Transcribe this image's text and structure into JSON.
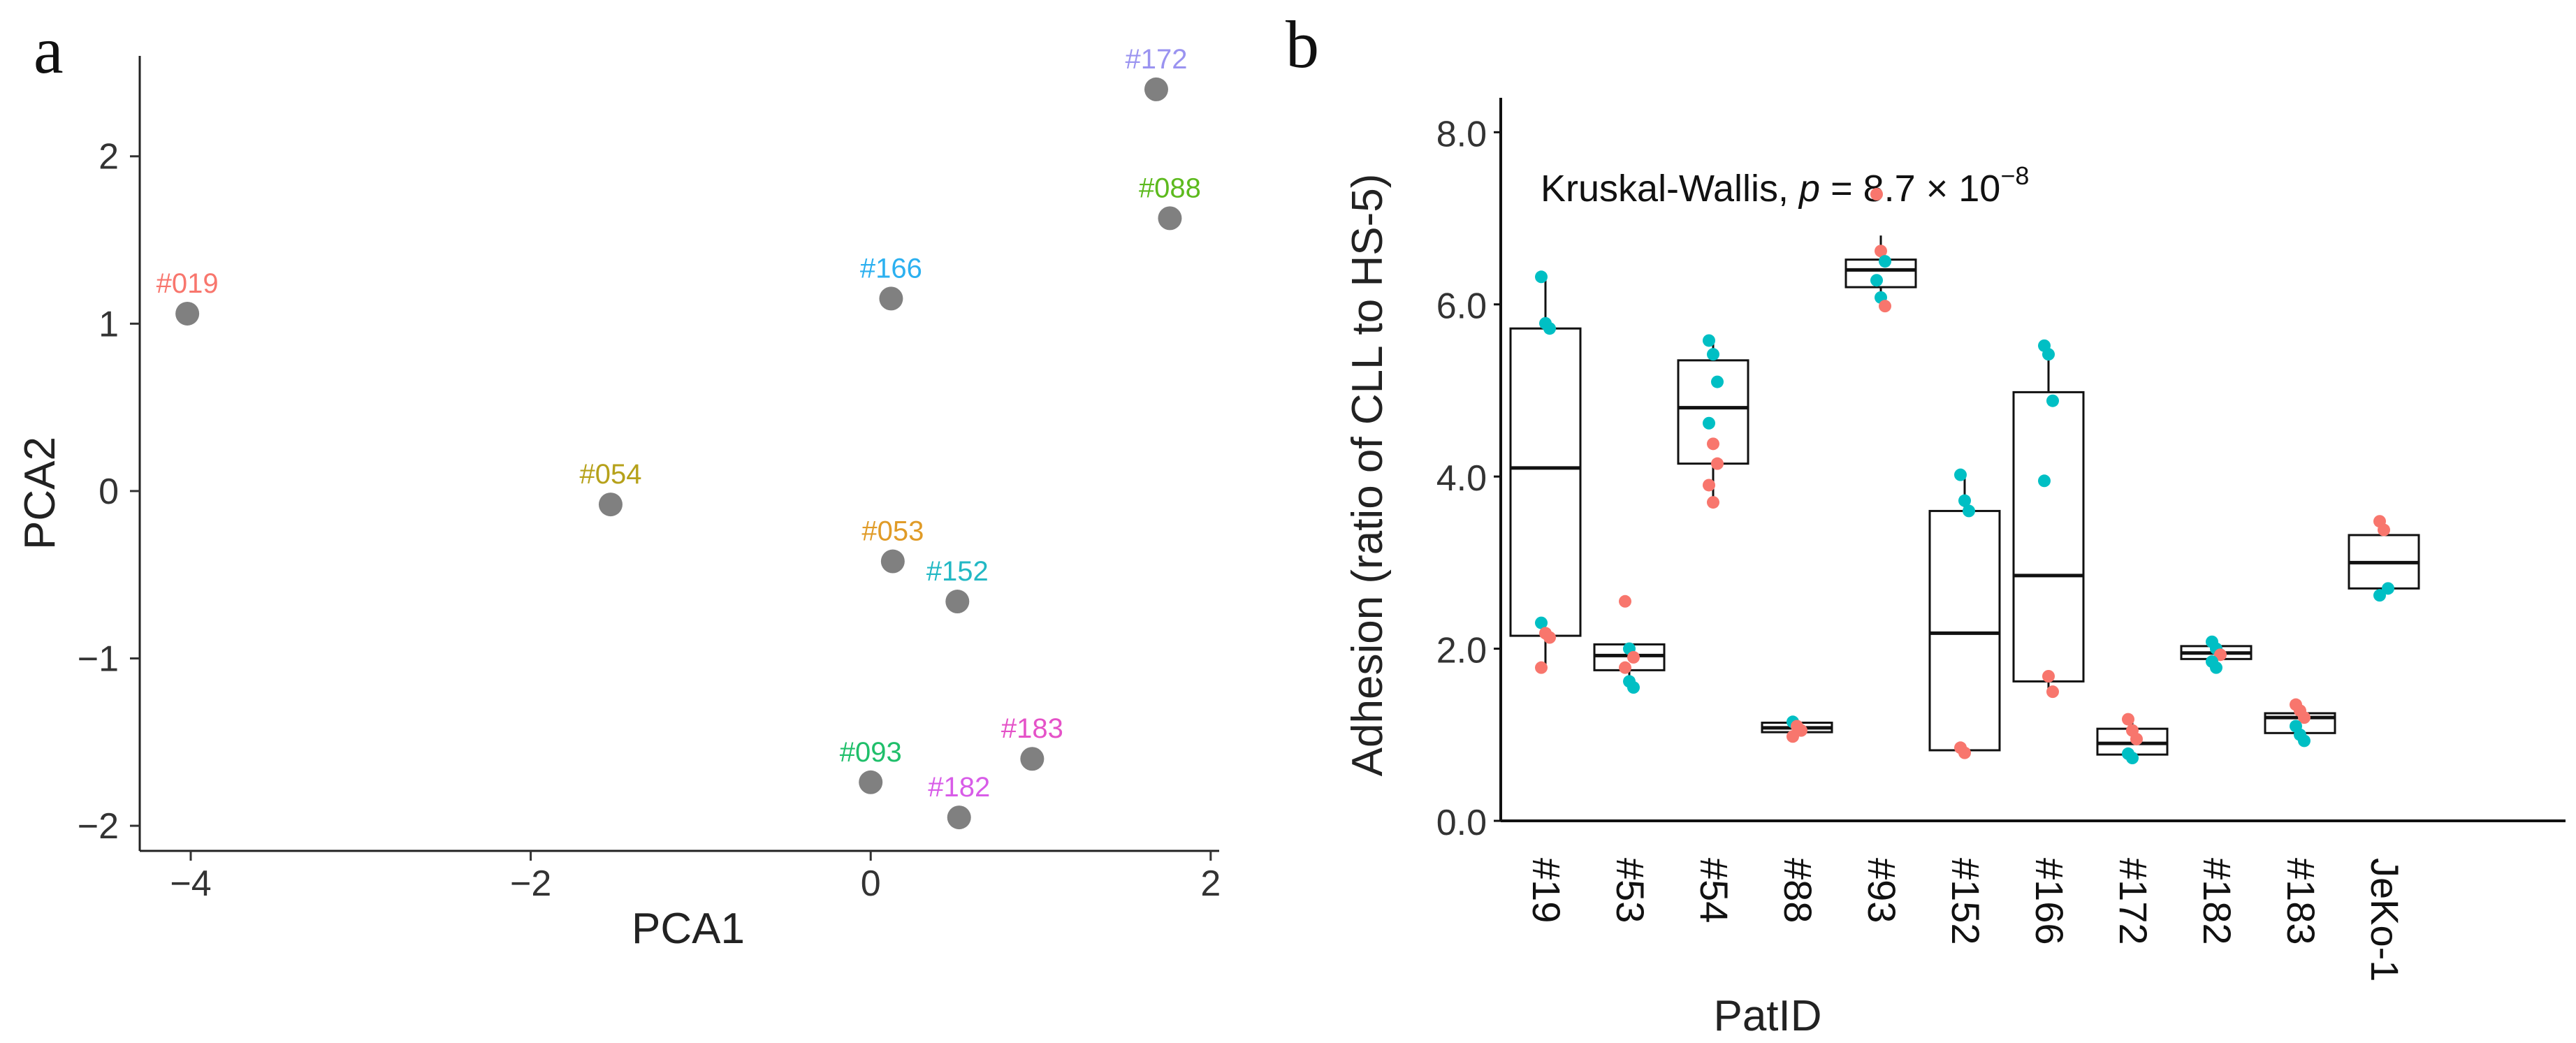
{
  "chart_data": [
    {
      "panel": "a",
      "type": "scatter",
      "xlabel": "PCA1",
      "ylabel": "PCA2",
      "xlim": [
        -4.3,
        2.05
      ],
      "ylim": [
        -2.15,
        2.6
      ],
      "xticks": [
        -4,
        -2,
        0,
        2
      ],
      "yticks": [
        -2,
        -1,
        0,
        1,
        2
      ],
      "xtick_labels": [
        "−4",
        "−2",
        "0",
        "2"
      ],
      "ytick_labels": [
        "−2",
        "−1",
        "0",
        "1",
        "2"
      ],
      "point_color": "#808080",
      "points": [
        {
          "label": "#019",
          "x": -4.02,
          "y": 1.06,
          "color": "#F8766D"
        },
        {
          "label": "#054",
          "x": -1.53,
          "y": -0.08,
          "color": "#B6A11A"
        },
        {
          "label": "#053",
          "x": 0.13,
          "y": -0.42,
          "color": "#E09B27"
        },
        {
          "label": "#152",
          "x": 0.51,
          "y": -0.66,
          "color": "#22B8C4"
        },
        {
          "label": "#166",
          "x": 0.12,
          "y": 1.15,
          "color": "#2BB0F0"
        },
        {
          "label": "#172",
          "x": 1.68,
          "y": 2.4,
          "color": "#9A93F0"
        },
        {
          "label": "#088",
          "x": 1.76,
          "y": 1.63,
          "color": "#5DBA1E"
        },
        {
          "label": "#093",
          "x": 0.0,
          "y": -1.74,
          "color": "#1FBF6A"
        },
        {
          "label": "#183",
          "x": 0.95,
          "y": -1.6,
          "color": "#E552C8"
        },
        {
          "label": "#182",
          "x": 0.52,
          "y": -1.95,
          "color": "#D85CE8"
        }
      ]
    },
    {
      "panel": "b",
      "type": "box",
      "xlabel": "PatID",
      "ylabel": "Adhesion (ratio of CLL to HS-5)",
      "annotation": {
        "prefix": "Kruskal-Wallis, ",
        "p_symbol": "p",
        "value": " = 8.7 × 10",
        "exponent": "−8"
      },
      "ylim": [
        0,
        8.4
      ],
      "yticks": [
        0,
        2,
        4,
        6,
        8
      ],
      "ytick_labels": [
        "0.0",
        "2.0",
        "4.0",
        "6.0",
        "8.0"
      ],
      "series_colors": {
        "red": "#F8766D",
        "cyan": "#00BFC4"
      },
      "categories": [
        "#19",
        "#53",
        "#54",
        "#88",
        "#93",
        "#152",
        "#166",
        "#172",
        "#182",
        "#183",
        "JeKo-1"
      ],
      "boxes": [
        {
          "q1": 2.15,
          "median": 4.1,
          "q3": 5.72,
          "whisker_low": 1.78,
          "whisker_high": 6.3,
          "points": [
            {
              "y": 6.32,
              "c": "cyan"
            },
            {
              "y": 5.78,
              "c": "cyan"
            },
            {
              "y": 5.72,
              "c": "cyan"
            },
            {
              "y": 2.3,
              "c": "cyan"
            },
            {
              "y": 2.18,
              "c": "red"
            },
            {
              "y": 2.13,
              "c": "red"
            },
            {
              "y": 1.78,
              "c": "red"
            }
          ]
        },
        {
          "q1": 1.75,
          "median": 1.92,
          "q3": 2.05,
          "whisker_low": 1.55,
          "whisker_high": 2.05,
          "points": [
            {
              "y": 2.55,
              "c": "red"
            },
            {
              "y": 2.0,
              "c": "cyan"
            },
            {
              "y": 1.9,
              "c": "red"
            },
            {
              "y": 1.78,
              "c": "red"
            },
            {
              "y": 1.62,
              "c": "cyan"
            },
            {
              "y": 1.55,
              "c": "cyan"
            }
          ]
        },
        {
          "q1": 4.15,
          "median": 4.8,
          "q3": 5.35,
          "whisker_low": 3.68,
          "whisker_high": 5.6,
          "points": [
            {
              "y": 5.58,
              "c": "cyan"
            },
            {
              "y": 5.42,
              "c": "cyan"
            },
            {
              "y": 5.1,
              "c": "cyan"
            },
            {
              "y": 4.62,
              "c": "cyan"
            },
            {
              "y": 4.38,
              "c": "red"
            },
            {
              "y": 4.15,
              "c": "red"
            },
            {
              "y": 3.9,
              "c": "red"
            },
            {
              "y": 3.7,
              "c": "red"
            }
          ]
        },
        {
          "q1": 1.03,
          "median": 1.08,
          "q3": 1.14,
          "whisker_low": 0.98,
          "whisker_high": 1.16,
          "points": [
            {
              "y": 1.15,
              "c": "cyan"
            },
            {
              "y": 1.1,
              "c": "red"
            },
            {
              "y": 1.05,
              "c": "red"
            },
            {
              "y": 0.98,
              "c": "red"
            }
          ]
        },
        {
          "q1": 6.2,
          "median": 6.4,
          "q3": 6.52,
          "whisker_low": 5.95,
          "whisker_high": 6.8,
          "points": [
            {
              "y": 7.28,
              "c": "red"
            },
            {
              "y": 6.62,
              "c": "red"
            },
            {
              "y": 6.5,
              "c": "cyan"
            },
            {
              "y": 6.28,
              "c": "cyan"
            },
            {
              "y": 6.08,
              "c": "cyan"
            },
            {
              "y": 5.98,
              "c": "red"
            }
          ]
        },
        {
          "q1": 0.82,
          "median": 2.18,
          "q3": 3.6,
          "whisker_low": 0.78,
          "whisker_high": 4.02,
          "points": [
            {
              "y": 4.02,
              "c": "cyan"
            },
            {
              "y": 3.72,
              "c": "cyan"
            },
            {
              "y": 3.6,
              "c": "cyan"
            },
            {
              "y": 0.85,
              "c": "red"
            },
            {
              "y": 0.79,
              "c": "red"
            }
          ]
        },
        {
          "q1": 1.62,
          "median": 2.85,
          "q3": 4.98,
          "whisker_low": 1.48,
          "whisker_high": 5.5,
          "points": [
            {
              "y": 5.52,
              "c": "cyan"
            },
            {
              "y": 5.42,
              "c": "cyan"
            },
            {
              "y": 4.88,
              "c": "cyan"
            },
            {
              "y": 3.95,
              "c": "cyan"
            },
            {
              "y": 1.68,
              "c": "red"
            },
            {
              "y": 1.5,
              "c": "red"
            }
          ]
        },
        {
          "q1": 0.77,
          "median": 0.9,
          "q3": 1.07,
          "whisker_low": 0.73,
          "whisker_high": 1.18,
          "points": [
            {
              "y": 1.18,
              "c": "red"
            },
            {
              "y": 1.05,
              "c": "red"
            },
            {
              "y": 0.95,
              "c": "red"
            },
            {
              "y": 0.78,
              "c": "cyan"
            },
            {
              "y": 0.73,
              "c": "cyan"
            }
          ]
        },
        {
          "q1": 1.88,
          "median": 1.95,
          "q3": 2.03,
          "whisker_low": 1.78,
          "whisker_high": 2.08,
          "points": [
            {
              "y": 2.08,
              "c": "cyan"
            },
            {
              "y": 2.0,
              "c": "cyan"
            },
            {
              "y": 1.93,
              "c": "red"
            },
            {
              "y": 1.85,
              "c": "cyan"
            },
            {
              "y": 1.78,
              "c": "cyan"
            }
          ]
        },
        {
          "q1": 1.02,
          "median": 1.2,
          "q3": 1.25,
          "whisker_low": 0.93,
          "whisker_high": 1.35,
          "points": [
            {
              "y": 1.35,
              "c": "red"
            },
            {
              "y": 1.28,
              "c": "red"
            },
            {
              "y": 1.2,
              "c": "red"
            },
            {
              "y": 1.1,
              "c": "cyan"
            },
            {
              "y": 1.0,
              "c": "cyan"
            },
            {
              "y": 0.93,
              "c": "cyan"
            }
          ]
        },
        {
          "q1": 2.7,
          "median": 3.0,
          "q3": 3.32,
          "whisker_low": 2.62,
          "whisker_high": 3.48,
          "points": [
            {
              "y": 3.48,
              "c": "red"
            },
            {
              "y": 3.38,
              "c": "red"
            },
            {
              "y": 2.7,
              "c": "cyan"
            },
            {
              "y": 2.62,
              "c": "cyan"
            }
          ]
        }
      ]
    }
  ]
}
